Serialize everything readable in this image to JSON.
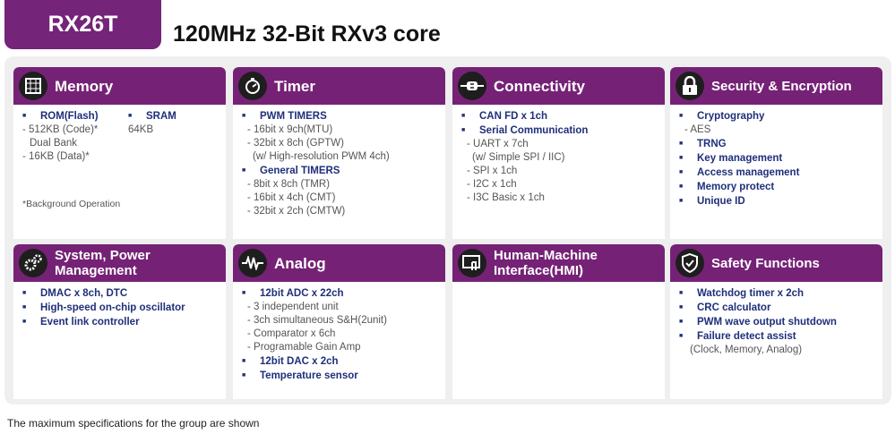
{
  "badge": "RX26T",
  "title": "120MHz 32-Bit RXv3 core",
  "footer": "The maximum specifications for the group are shown",
  "cards": [
    {
      "title": "Memory",
      "icon": "memory-chip-icon",
      "lines": []
    },
    {
      "title": "Timer",
      "icon": "stopwatch-icon",
      "lines": [
        {
          "b": true,
          "text": "PWM TIMERS"
        },
        {
          "text": "- 16bit x 9ch(MTU)"
        },
        {
          "text": "- 32bit x 8ch (GPTW)"
        },
        {
          "text": "(w/ High-resolution  PWM 4ch)"
        },
        {
          "b": true,
          "text": "General  TIMERS"
        },
        {
          "text": "- 8bit x 8ch (TMR)"
        },
        {
          "text": "- 16bit x 4ch (CMT)"
        },
        {
          "text": "- 32bit x 2ch (CMTW)"
        }
      ]
    },
    {
      "title": "Connectivity",
      "icon": "plug-icon",
      "lines": [
        {
          "b": true,
          "text": "CAN FD x 1ch"
        },
        {
          "b": true,
          "text": "Serial Communication"
        },
        {
          "text": "- UART x 7ch"
        },
        {
          "text": "(w/ Simple SPI / IIC)"
        },
        {
          "text": "- SPI x 1ch"
        },
        {
          "text": "- I2C x 1ch"
        },
        {
          "text": "- I3C Basic x 1ch"
        }
      ]
    },
    {
      "title": "Security & Encryption",
      "icon": "lock-icon",
      "lines": [
        {
          "b": true,
          "text": "Cryptography"
        },
        {
          "text": "- AES"
        },
        {
          "b": true,
          "text": "TRNG"
        },
        {
          "b": true,
          "text": "Key management"
        },
        {
          "b": true,
          "text": "Access  management"
        },
        {
          "b": true,
          "text": "Memory  protect"
        },
        {
          "b": true,
          "text": "Unique ID"
        }
      ]
    },
    {
      "title": "System, Power Management",
      "icon": "gears-icon",
      "lines": [
        {
          "b": true,
          "text": "DMAC x 8ch, DTC"
        },
        {
          "b": true,
          "text": "High-speed  on-chip oscillator"
        },
        {
          "b": true,
          "text": "Event link  controller"
        }
      ]
    },
    {
      "title": "Analog",
      "icon": "waveform-icon",
      "lines": [
        {
          "b": true,
          "text": "12bit  ADC x 22ch"
        },
        {
          "text": "- 3 independent  unit"
        },
        {
          "text": "- 3ch simultaneous  S&H(2unit)"
        },
        {
          "text": "- Comparator x 6ch"
        },
        {
          "text": "- Programable Gain Amp"
        },
        {
          "b": true,
          "text": "12bit  DAC x 2ch"
        },
        {
          "b": true,
          "text": "Temperature  sensor"
        }
      ]
    },
    {
      "title": "Human-Machine Interface(HMI)",
      "icon": "touch-screen-icon",
      "lines": []
    },
    {
      "title": "Safety Functions",
      "icon": "shield-check-icon",
      "lines": [
        {
          "b": true,
          "text": "Watchdog timer x 2ch"
        },
        {
          "b": true,
          "text": "CRC calculator"
        },
        {
          "b": true,
          "text": "PWM wave output shutdown"
        },
        {
          "b": true,
          "text": "Failure  detect assist"
        },
        {
          "text": "(Clock, Memory, Analog)"
        }
      ]
    }
  ],
  "memory": {
    "rom_label": "ROM(Flash)",
    "rom_lines": [
      "- 512KB  (Code)*",
      "Dual Bank",
      "- 16KB    (Data)*"
    ],
    "sram_label": "SRAM",
    "sram_value": "64KB",
    "note": "*Background Operation"
  }
}
